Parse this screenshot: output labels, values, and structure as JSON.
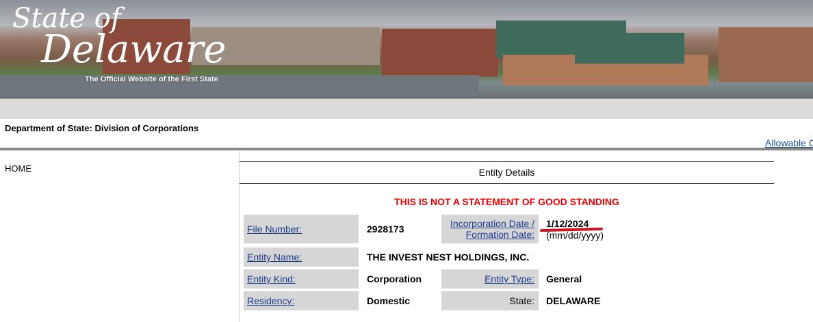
{
  "banner": {
    "logo_line1": "State of",
    "logo_line2": "Delaware",
    "tagline": "The Official Website of the First State"
  },
  "header": {
    "department": "Department of State: Division of Corporations",
    "allowable_link": "Allowable C"
  },
  "nav": {
    "home": "HOME"
  },
  "main": {
    "title": "Entity Details",
    "warning": "THIS IS NOT A STATEMENT OF GOOD STANDING",
    "file_number_label": "File Number:",
    "file_number": "2928173",
    "inc_date_label1": "Incorporation Date /",
    "inc_date_label2": "Formation Date:",
    "inc_date": "1/12/2024",
    "date_format": "(mm/dd/yyyy)",
    "entity_name_label": "Entity Name:",
    "entity_name": "THE INVEST NEST HOLDINGS, INC.",
    "entity_kind_label": "Entity Kind:",
    "entity_kind": "Corporation",
    "entity_type_label": "Entity Type:",
    "entity_type": "General",
    "residency_label": "Residency:",
    "residency": "Domestic",
    "state_label": "State:",
    "state": "DELAWARE"
  },
  "colors": {
    "warning": "#e00000",
    "link": "#1a3a8a",
    "label_bg": "#d6d6d6",
    "annotation": "#d0101a"
  }
}
